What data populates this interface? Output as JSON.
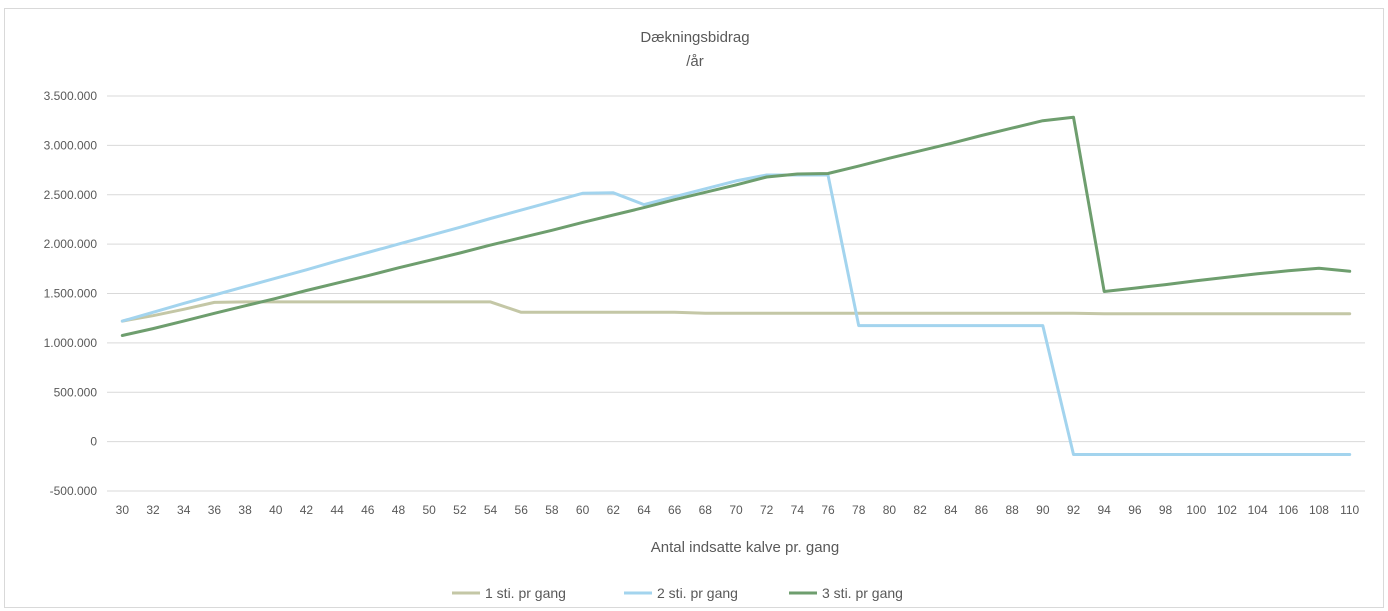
{
  "chart_data": {
    "type": "line",
    "title": "Dækningsbidrag",
    "subtitle": "/år",
    "xlabel": "Antal indsatte kalve pr. gang",
    "ylabel": "",
    "ylim": [
      -500000,
      3500000
    ],
    "y_ticks": [
      "-500.000",
      "0",
      "500.000",
      "1.000.000",
      "1.500.000",
      "2.000.000",
      "2.500.000",
      "3.000.000",
      "3.500.000"
    ],
    "y_tick_values": [
      -500000,
      0,
      500000,
      1000000,
      1500000,
      2000000,
      2500000,
      3000000,
      3500000
    ],
    "grid": true,
    "legend_position": "bottom",
    "categories": [
      30,
      32,
      34,
      36,
      38,
      40,
      42,
      44,
      46,
      48,
      50,
      52,
      54,
      56,
      58,
      60,
      62,
      64,
      66,
      68,
      70,
      72,
      74,
      76,
      78,
      80,
      82,
      84,
      86,
      88,
      90,
      92,
      94,
      96,
      98,
      100,
      102,
      104,
      106,
      108,
      110
    ],
    "series": [
      {
        "name": "1 sti. pr gang",
        "color": "#c4c7a6",
        "values": [
          1220000,
          1275000,
          1340000,
          1410000,
          1415000,
          1415000,
          1415000,
          1415000,
          1415000,
          1415000,
          1415000,
          1415000,
          1415000,
          1310000,
          1310000,
          1310000,
          1310000,
          1310000,
          1310000,
          1300000,
          1300000,
          1300000,
          1300000,
          1300000,
          1300000,
          1300000,
          1300000,
          1300000,
          1300000,
          1300000,
          1300000,
          1300000,
          1295000,
          1295000,
          1295000,
          1295000,
          1295000,
          1295000,
          1295000,
          1295000,
          1295000
        ]
      },
      {
        "name": "2 sti. pr gang",
        "color": "#a3d4ee",
        "values": [
          1220000,
          1310000,
          1400000,
          1485000,
          1570000,
          1655000,
          1740000,
          1830000,
          1915000,
          2000000,
          2085000,
          2170000,
          2260000,
          2345000,
          2430000,
          2515000,
          2520000,
          2400000,
          2480000,
          2560000,
          2640000,
          2700000,
          2700000,
          2700000,
          1175000,
          1175000,
          1175000,
          1175000,
          1175000,
          1175000,
          1175000,
          -130000,
          -130000,
          -130000,
          -130000,
          -130000,
          -130000,
          -130000,
          -130000,
          -130000,
          -130000
        ]
      },
      {
        "name": "3 sti. pr gang",
        "color": "#6e9e6e",
        "values": [
          1075000,
          1145000,
          1220000,
          1300000,
          1375000,
          1450000,
          1530000,
          1605000,
          1680000,
          1760000,
          1835000,
          1910000,
          1990000,
          2065000,
          2140000,
          2220000,
          2295000,
          2370000,
          2450000,
          2525000,
          2600000,
          2680000,
          2710000,
          2715000,
          2790000,
          2870000,
          2945000,
          3020000,
          3100000,
          3175000,
          3250000,
          3285000,
          1520000,
          1555000,
          1590000,
          1630000,
          1665000,
          1700000,
          1730000,
          1755000,
          1725000
        ]
      }
    ]
  }
}
